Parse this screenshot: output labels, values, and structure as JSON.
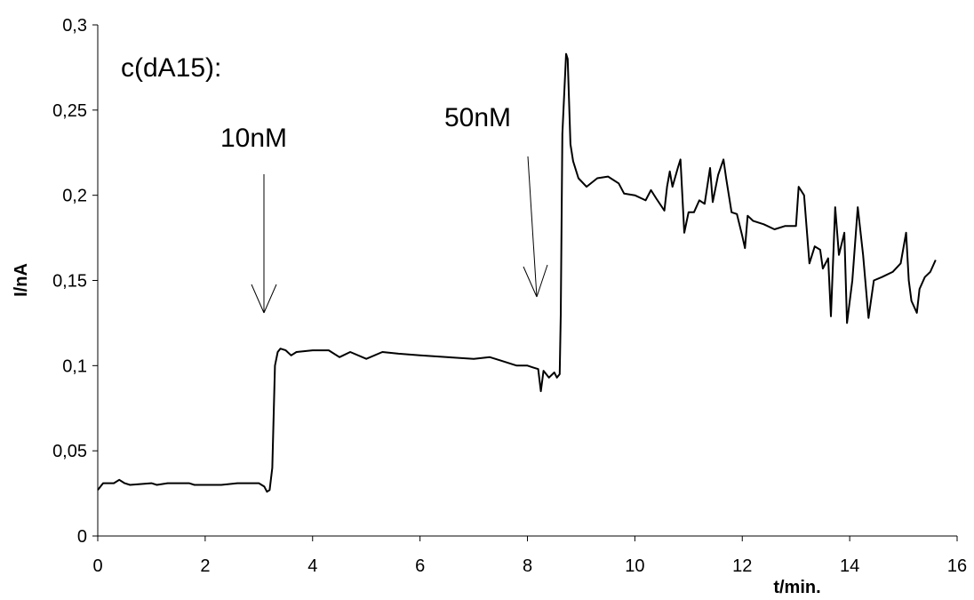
{
  "chart_data": {
    "type": "line",
    "x_label": "t/min.",
    "y_label": "I/nA",
    "annotations": [
      "c(dA15):",
      "10nM",
      "50nM"
    ],
    "color": "#000000",
    "x": [
      0,
      0.1,
      0.3,
      0.4,
      0.5,
      0.6,
      1.0,
      1.1,
      1.3,
      1.7,
      1.8,
      2.3,
      2.6,
      3.0,
      3.1,
      3.15,
      3.2,
      3.25,
      3.3,
      3.35,
      3.4,
      3.5,
      3.6,
      3.7,
      4.0,
      4.3,
      4.5,
      4.7,
      5.0,
      5.3,
      5.6,
      6.0,
      6.5,
      7.0,
      7.3,
      7.5,
      7.8,
      8.0,
      8.1,
      8.2,
      8.25,
      8.3,
      8.4,
      8.5,
      8.55,
      8.6,
      8.62,
      8.65,
      8.72,
      8.75,
      8.8,
      8.85,
      8.95,
      9.1,
      9.3,
      9.5,
      9.7,
      9.8,
      10.0,
      10.2,
      10.3,
      10.4,
      10.55,
      10.6,
      10.65,
      10.7,
      10.8,
      10.85,
      10.92,
      11.0,
      11.1,
      11.2,
      11.3,
      11.4,
      11.45,
      11.55,
      11.65,
      11.7,
      11.8,
      11.9,
      12.0,
      12.05,
      12.1,
      12.2,
      12.4,
      12.6,
      12.8,
      13.0,
      13.05,
      13.15,
      13.25,
      13.35,
      13.45,
      13.5,
      13.6,
      13.65,
      13.73,
      13.8,
      13.9,
      13.95,
      14.05,
      14.15,
      14.25,
      14.35,
      14.45,
      14.6,
      14.8,
      14.95,
      15.05,
      15.1,
      15.15,
      15.25,
      15.3,
      15.4,
      15.5,
      15.6
    ],
    "values": [
      0.027,
      0.031,
      0.031,
      0.033,
      0.031,
      0.03,
      0.031,
      0.03,
      0.031,
      0.031,
      0.03,
      0.03,
      0.031,
      0.031,
      0.029,
      0.026,
      0.027,
      0.04,
      0.1,
      0.108,
      0.11,
      0.109,
      0.106,
      0.108,
      0.109,
      0.109,
      0.105,
      0.108,
      0.104,
      0.108,
      0.107,
      0.106,
      0.105,
      0.104,
      0.105,
      0.103,
      0.1,
      0.1,
      0.099,
      0.098,
      0.085,
      0.097,
      0.093,
      0.096,
      0.093,
      0.095,
      0.13,
      0.236,
      0.283,
      0.28,
      0.23,
      0.22,
      0.21,
      0.205,
      0.21,
      0.211,
      0.207,
      0.201,
      0.2,
      0.197,
      0.203,
      0.198,
      0.191,
      0.205,
      0.214,
      0.205,
      0.216,
      0.221,
      0.178,
      0.19,
      0.19,
      0.197,
      0.195,
      0.216,
      0.196,
      0.212,
      0.221,
      0.21,
      0.19,
      0.189,
      0.176,
      0.169,
      0.188,
      0.185,
      0.183,
      0.18,
      0.182,
      0.182,
      0.205,
      0.2,
      0.16,
      0.17,
      0.168,
      0.157,
      0.163,
      0.129,
      0.193,
      0.165,
      0.178,
      0.125,
      0.15,
      0.193,
      0.165,
      0.128,
      0.15,
      0.152,
      0.155,
      0.16,
      0.178,
      0.15,
      0.138,
      0.131,
      0.145,
      0.152,
      0.155,
      0.162
    ],
    "xlim": [
      0,
      16
    ],
    "xticks": [
      0,
      2,
      4,
      6,
      8,
      10,
      12,
      14,
      16
    ],
    "ylim": [
      0,
      0.3
    ],
    "yticks": [
      0,
      {
        "value": 0.05,
        "label": "0,05"
      },
      {
        "value": 0.1,
        "label": "0,1"
      },
      {
        "value": 0.15,
        "label": "0,15"
      },
      {
        "value": 0.2,
        "label": "0,2"
      },
      {
        "value": 0.25,
        "label": "0,25"
      },
      {
        "value": 0.3,
        "label": "0,3"
      }
    ],
    "grid": false
  }
}
